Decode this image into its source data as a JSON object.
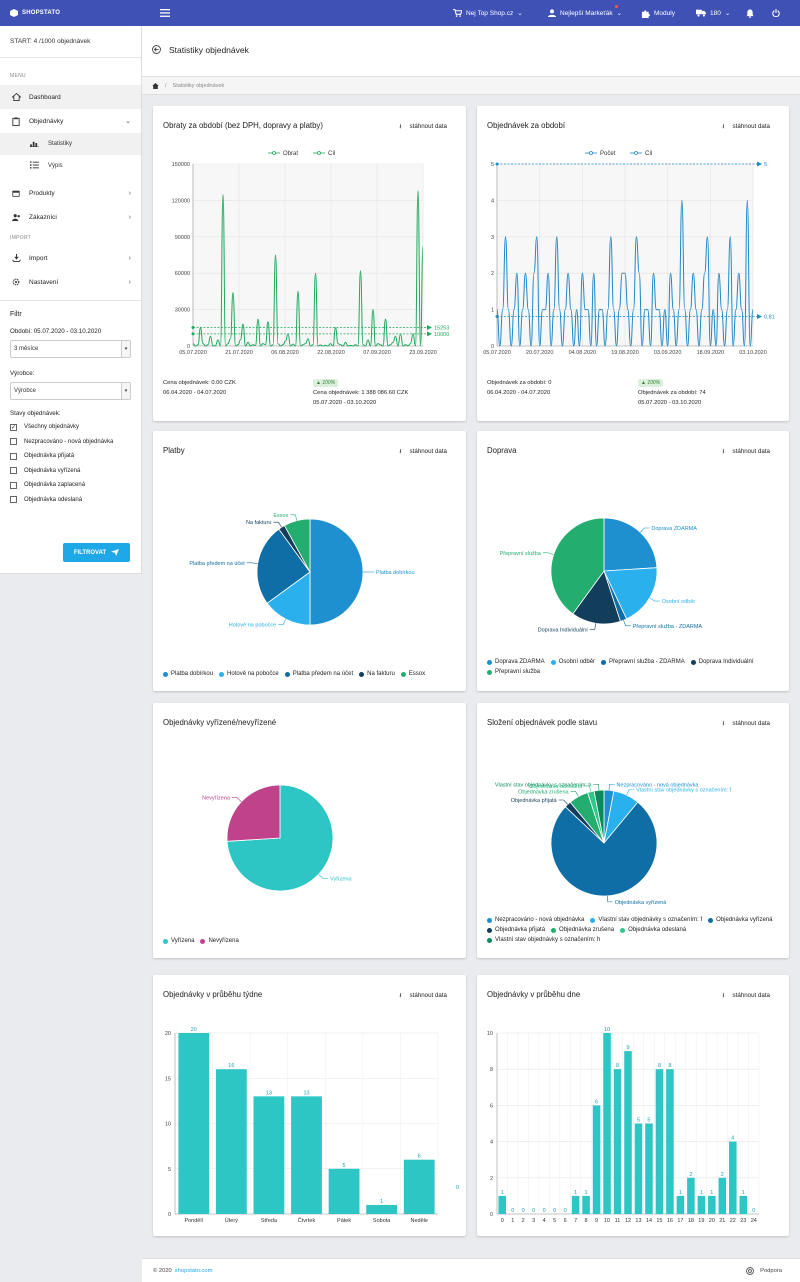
{
  "topbar": {
    "brand": "SHOPSTATO",
    "store": "Nej Top Shop.cz",
    "user": "Nejlepší Markeťák",
    "modules": "Moduly",
    "count": "180",
    "accent": "#3f51b5"
  },
  "sidebar": {
    "start": "START: 4 /1000 objednávek",
    "section_menu": "MENU",
    "section_import": "IMPORT",
    "items": [
      {
        "label": "Dashboard",
        "icon": "home-icon"
      },
      {
        "label": "Objednávky",
        "icon": "clipboard-icon"
      },
      {
        "label": "Produkty",
        "icon": "box-icon"
      },
      {
        "label": "Zákazníci",
        "icon": "users-icon"
      },
      {
        "label": "Import",
        "icon": "download-icon"
      },
      {
        "label": "Nastavení",
        "icon": "gear-icon"
      }
    ],
    "sub": [
      {
        "label": "Statistiky",
        "icon": "chart-icon"
      },
      {
        "label": "Výpis",
        "icon": "list-icon"
      }
    ]
  },
  "filter": {
    "title": "Filtr",
    "period_label": "Období: 05.07.2020 - 03.10.2020",
    "period_value": "3 měsíce",
    "maker_label": "Výrobce:",
    "maker_value": "Výrobce",
    "states_label": "Stavy objednávek:",
    "states": [
      {
        "label": "Všechny objednávky",
        "checked": "✓"
      },
      {
        "label": "Nezpracováno - nová objednávka",
        "checked": ""
      },
      {
        "label": "Objednávka přijatá",
        "checked": ""
      },
      {
        "label": "Objednávka vyřízená",
        "checked": ""
      },
      {
        "label": "Objednávka zaplacená",
        "checked": ""
      },
      {
        "label": "Objednávka odeslaná",
        "checked": ""
      }
    ],
    "button": "FILTROVAT"
  },
  "page": {
    "title": "Statistiky objednávek",
    "breadcrumb_sep": "/",
    "breadcrumb": "Statistiky objednávek"
  },
  "download": "stáhnout data",
  "cards": {
    "obraty": {
      "title": "Obraty za období (bez DPH, dopravy a platby)",
      "stat1": "Cena objednávek: 0.00 CZK",
      "period1": "06.04.2020 - 04.07.2020",
      "badge": "100%",
      "stat2": "Cena objednávek: 1 388 086.60 CZK",
      "period2": "05.07.2020 - 03.10.2020",
      "color": "#1ea85b"
    },
    "pocet": {
      "title": "Objednávek za období",
      "stat1": "Objednávek za období: 0",
      "period1": "06.04.2020 - 04.07.2020",
      "badge": "100%",
      "stat2": "Objednávek za období: 74",
      "period2": "05.07.2020 - 03.10.2020",
      "color": "#1e88c8"
    },
    "platby": {
      "title": "Platby"
    },
    "doprava": {
      "title": "Doprava"
    },
    "vyrizene": {
      "title": "Objednávky vyřízené/nevyřízené"
    },
    "slozeni": {
      "title": "Složení objednávek podle stavu"
    },
    "tyden": {
      "title": "Objednávky v průběhu týdne"
    },
    "den": {
      "title": "Objednávky v průběhu dne"
    }
  },
  "chart_data": [
    {
      "id": "obraty",
      "type": "line",
      "series": [
        {
          "name": "Obrat"
        },
        {
          "name": "Cíl",
          "values": [
            15253,
            10000
          ]
        }
      ],
      "x_ticks": [
        "05.07.2020",
        "21.07.2020",
        "06.08.2020",
        "22.08.2020",
        "07.09.2020",
        "23.09.2020"
      ],
      "y_ticks": [
        "0",
        "30000",
        "60000",
        "90000",
        "120000",
        "150000"
      ],
      "ylim": [
        0,
        150000
      ],
      "end_labels": [
        "15253",
        "10000"
      ],
      "values": [
        2000,
        0,
        1000,
        15000,
        2000,
        0,
        1000,
        8000,
        0,
        500,
        5000,
        0,
        125000,
        0,
        2000,
        6000,
        44000,
        0,
        1000,
        5000,
        18000,
        0,
        3000,
        0,
        1000,
        500,
        22000,
        0,
        2000,
        1000,
        20000,
        0,
        1000,
        75000,
        2000,
        0,
        1000,
        4000,
        10000,
        0,
        1500,
        0,
        45000,
        0,
        1000,
        2000,
        6000,
        0,
        1000,
        60000,
        0,
        800,
        0,
        500,
        0,
        2000,
        0,
        15000,
        2000,
        1000,
        0,
        3000,
        0,
        500,
        0,
        1000,
        0,
        62000,
        1000,
        0,
        5000,
        0,
        30000,
        0,
        2000,
        1000,
        0,
        22000,
        0,
        1000,
        3000,
        8000,
        0,
        10000,
        0,
        1000,
        0,
        2000,
        10000,
        0,
        128000,
        0,
        82000
      ]
    },
    {
      "id": "pocet",
      "type": "line",
      "series": [
        {
          "name": "Počet"
        },
        {
          "name": "Cíl",
          "values": [
            5,
            0.81
          ]
        }
      ],
      "x_ticks": [
        "05.07.2020",
        "20.07.2020",
        "04.08.2020",
        "19.08.2020",
        "03.09.2020",
        "18.09.2020",
        "03.10.2020"
      ],
      "y_ticks": [
        "0",
        "1",
        "2",
        "3",
        "4",
        "5"
      ],
      "ylim": [
        0,
        5
      ],
      "end_labels": [
        "5",
        "0.81"
      ],
      "values": [
        1,
        0,
        1,
        3,
        1,
        0,
        1,
        2,
        0,
        1,
        2,
        1,
        0,
        2,
        3,
        0,
        1,
        1,
        2,
        0,
        1,
        3,
        1,
        0,
        1,
        2,
        1,
        0,
        1,
        0,
        2,
        1,
        1,
        0,
        2,
        0,
        1,
        1,
        0,
        1,
        3,
        1,
        0,
        1,
        2,
        2,
        1,
        0,
        1,
        3,
        2,
        0,
        1,
        1,
        0,
        2,
        1,
        1,
        0,
        1,
        0,
        2,
        1,
        0,
        1,
        4,
        1,
        0,
        1,
        2,
        1,
        0,
        1,
        2,
        3,
        0,
        1,
        0,
        2,
        1,
        0,
        1,
        3,
        0,
        1,
        2,
        1,
        0,
        4,
        0,
        1
      ]
    },
    {
      "id": "platby",
      "type": "pie",
      "labels": [
        "Platba dobírkou",
        "Hotově na pobočce",
        "Platba předem na účet",
        "Na fakturu",
        "Essox"
      ],
      "values": [
        50,
        15,
        25,
        2,
        8
      ],
      "colors": [
        "#1e90d0",
        "#2bb0ee",
        "#0f6ea5",
        "#123e5c",
        "#23ad6f"
      ]
    },
    {
      "id": "doprava",
      "type": "pie",
      "labels": [
        "Doprava ZDARMA",
        "Osobní odběr",
        "Přepravní služba - ZDARMA",
        "Doprava Individuální",
        "Přepravní služba"
      ],
      "values": [
        24,
        19,
        2,
        15,
        40
      ],
      "colors": [
        "#1e90d0",
        "#2bb0ee",
        "#0f6ea5",
        "#123e5c",
        "#23ad6f"
      ]
    },
    {
      "id": "vyrizene",
      "type": "pie",
      "labels": [
        "Vyřízena",
        "Nevyřízena"
      ],
      "values": [
        74,
        26
      ],
      "colors": [
        "#2ec5c5",
        "#c0428a"
      ]
    },
    {
      "id": "slozeni",
      "type": "pie",
      "labels": [
        "Nezpracováno - nová objednávka",
        "Vlastní stav objednávky s označením: f",
        "Objednávka vyřízená",
        "Objednávka přijatá",
        "Objednávka zrušena",
        "Objednávka odeslaná",
        "Vlastní stav objednávky s označením: h"
      ],
      "values": [
        3,
        8,
        76,
        2,
        6,
        2,
        3
      ],
      "colors": [
        "#1e90d0",
        "#2bb0ee",
        "#0f6ea5",
        "#123e5c",
        "#23ad6f",
        "#2ec98a",
        "#0d8a5a"
      ]
    },
    {
      "id": "tyden",
      "type": "bar",
      "categories": [
        "Pondělí",
        "Úterý",
        "Středa",
        "Čtvrtek",
        "Pátek",
        "Sobota",
        "Neděle"
      ],
      "values": [
        20,
        16,
        13,
        13,
        5,
        1,
        6
      ],
      "ylim": [
        0,
        20
      ],
      "y_ticks": [
        "0",
        "5",
        "10",
        "15",
        "20"
      ],
      "extra_label": "0",
      "color": "#2ec5c5"
    },
    {
      "id": "den",
      "type": "bar",
      "categories": [
        "0",
        "1",
        "2",
        "3",
        "4",
        "5",
        "6",
        "7",
        "8",
        "9",
        "10",
        "11",
        "12",
        "13",
        "14",
        "15",
        "16",
        "17",
        "18",
        "19",
        "20",
        "21",
        "22",
        "23",
        "24"
      ],
      "values": [
        1,
        0,
        0,
        0,
        0,
        0,
        0,
        1,
        1,
        6,
        10,
        8,
        9,
        5,
        5,
        8,
        8,
        1,
        2,
        1,
        1,
        2,
        4,
        1,
        0
      ],
      "ylim": [
        0,
        10
      ],
      "y_ticks": [
        "0",
        "2",
        "4",
        "6",
        "8",
        "10"
      ],
      "color": "#2ec5c5"
    }
  ],
  "footer": {
    "copyright": "© 2020",
    "link": "shopstato.com",
    "support": "Podpora"
  }
}
